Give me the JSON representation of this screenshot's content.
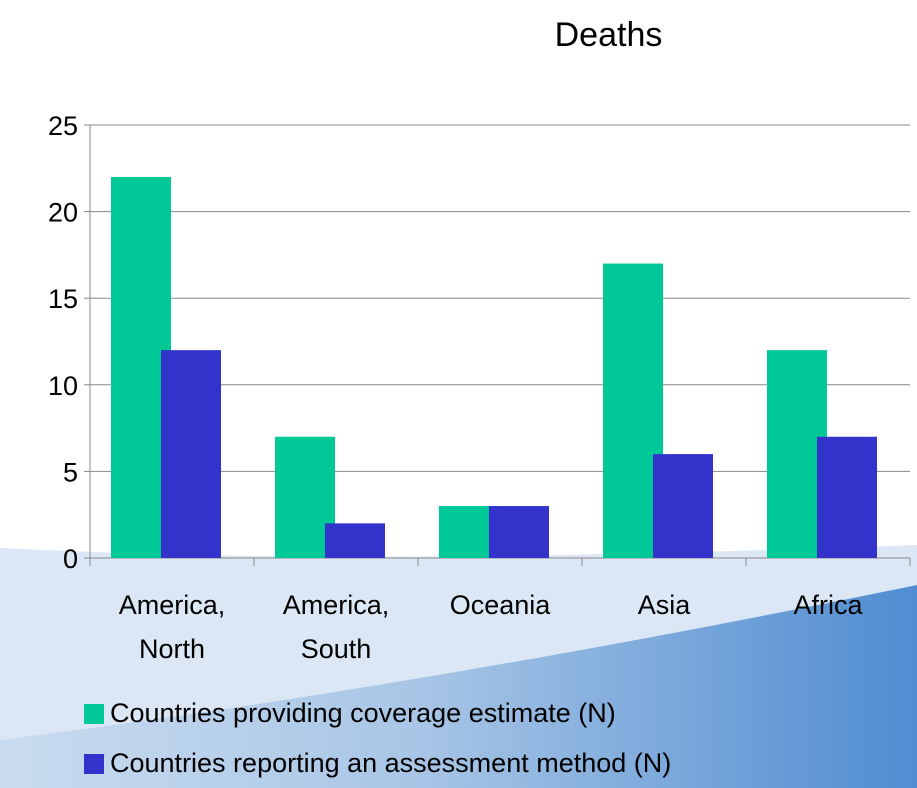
{
  "colors": {
    "series_coverage": "#00c896",
    "series_assessment": "#3333cc",
    "background_wave": "#4f8cd1",
    "background_wave_light": "#c9dcef"
  },
  "chart_data": {
    "type": "bar",
    "title": "Deaths",
    "xlabel": "",
    "ylabel": "",
    "ylim": [
      0,
      25
    ],
    "yticks": [
      0,
      5,
      10,
      15,
      20,
      25
    ],
    "grid": true,
    "legend_position": "bottom",
    "categories": [
      [
        "America,",
        "North"
      ],
      [
        "America,",
        "South"
      ],
      [
        "Oceania"
      ],
      [
        "Asia"
      ],
      [
        "Africa"
      ]
    ],
    "series": [
      {
        "name": "Countries providing coverage estimate (N)",
        "values": [
          22,
          7,
          3,
          17,
          12
        ]
      },
      {
        "name": "Countries reporting an assessment method (N)",
        "values": [
          12,
          2,
          3,
          6,
          7
        ]
      }
    ]
  }
}
